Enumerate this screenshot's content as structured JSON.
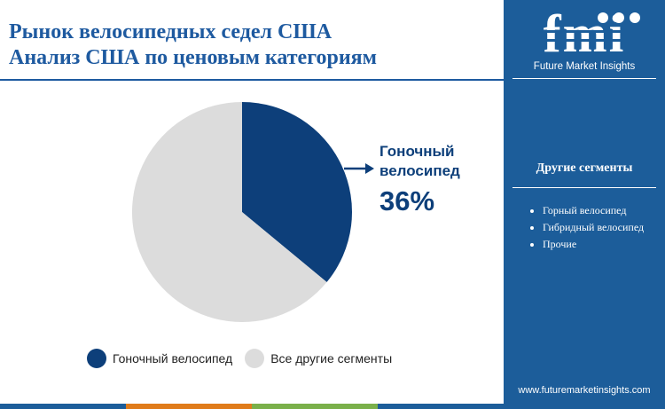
{
  "title_line1": "Рынок велосипедных седел США",
  "title_line2": "Анализ США по ценовым категориям",
  "chart_data": {
    "type": "pie",
    "slices": [
      {
        "label": "Гоночный велосипед",
        "value": 36,
        "color": "#0d3f7a"
      },
      {
        "label": "Все другие сегменты",
        "value": 64,
        "color": "#dcdcdc"
      }
    ],
    "callout": {
      "label_line1": "Гоночный",
      "label_line2": "велосипед",
      "value": "36%"
    },
    "legend_placement": "bottom"
  },
  "legend": [
    {
      "label": "Гоночный велосипед",
      "color": "#0d3f7a"
    },
    {
      "label": "Все другие сегменты",
      "color": "#dcdcdc"
    }
  ],
  "sidebar": {
    "logo_text": "fmi",
    "logo_subtitle": "Future Market Insights",
    "heading": "Другие сегменты",
    "items": [
      "Горный велосипед",
      "Гибридный велосипед",
      "Прочие"
    ],
    "url": "www.futuremarketinsights.com"
  },
  "colors": {
    "accent": "#1e5aa0",
    "sidebar": "#1c5d9a",
    "bottom_bar": [
      "#1c5d9a",
      "#e07b1a",
      "#7ab04a",
      "#1c5d9a"
    ]
  }
}
